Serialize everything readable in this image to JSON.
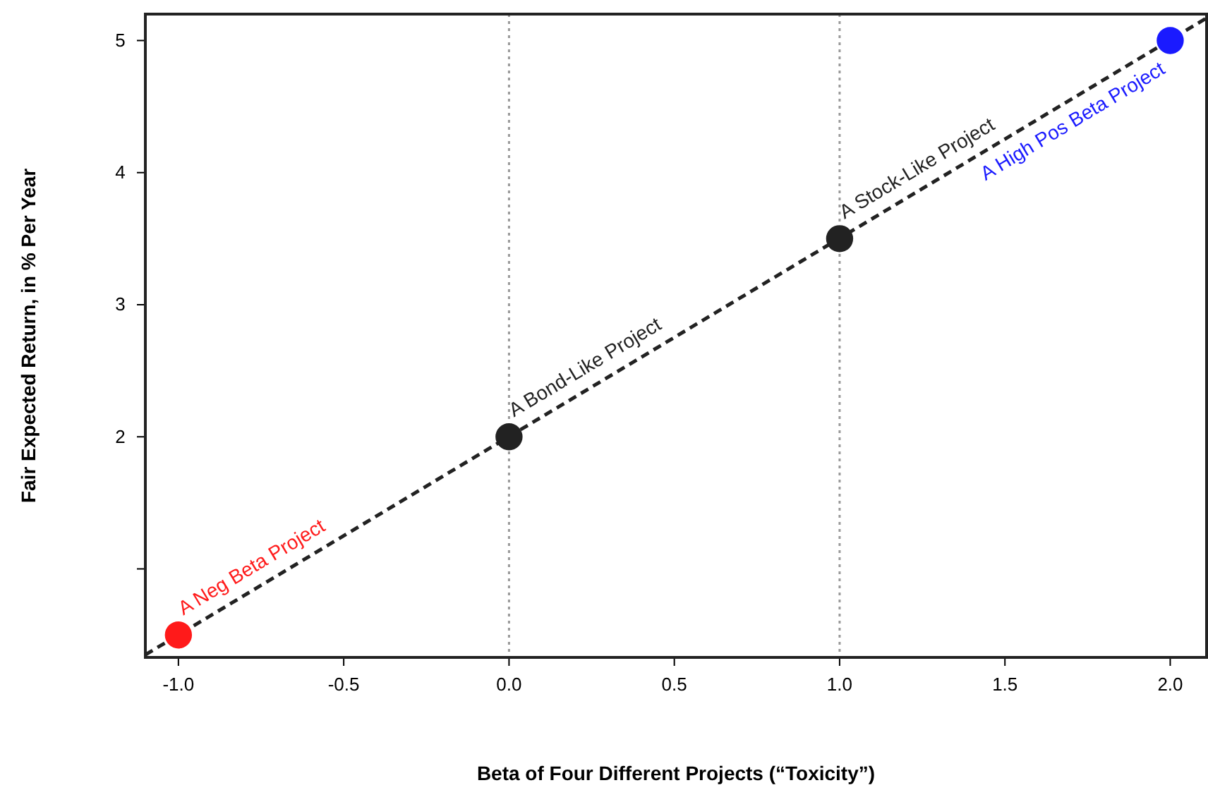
{
  "chart_data": {
    "type": "scatter",
    "xlabel": "Beta of Four Different Projects (“Toxicity”)",
    "ylabel": "Fair Expected Return, in % Per Year",
    "xlim": [
      -1.1,
      2.11
    ],
    "ylim": [
      0.33,
      5.2
    ],
    "xticks": [
      {
        "value": -1,
        "label": "-1.0"
      },
      -0.5,
      {
        "value": 0,
        "label": "0.0"
      },
      0.5,
      {
        "value": 1,
        "label": "1.0"
      },
      1.5,
      {
        "value": 2,
        "label": "2.0"
      }
    ],
    "yticks": [
      {
        "value": 1,
        "label": null
      },
      2,
      3,
      4,
      5
    ],
    "grid": false,
    "marker": "circle",
    "ref_lines": [
      {
        "axis": "x",
        "value": 0,
        "color": "#999999",
        "line_style": "dotted"
      },
      {
        "axis": "x",
        "value": 1,
        "color": "#999999",
        "line_style": "dotted"
      }
    ],
    "series": [
      {
        "type": "line",
        "x": [
          -1.1,
          2.11
        ],
        "values": [
          0.35,
          5.17
        ],
        "color": "#222222",
        "line_style": "dashed",
        "marker": "none"
      },
      {
        "x": [
          -1,
          0,
          1,
          2
        ],
        "values": [
          0.5,
          2,
          3.5,
          5
        ],
        "colors": [
          "#ff1a1a",
          "#222222",
          "#222222",
          "#1a1aff"
        ]
      }
    ],
    "annotations": [
      {
        "text": "A Neg Beta Project",
        "x": -1,
        "y": 0.5
      },
      {
        "text": "A Bond-Like Project",
        "x": 0,
        "y": 2
      },
      {
        "text": "A Stock-Like Project",
        "x": 1,
        "y": 3.5
      },
      {
        "text": "A High Pos Beta Project",
        "x": 2,
        "y": 5
      }
    ]
  }
}
